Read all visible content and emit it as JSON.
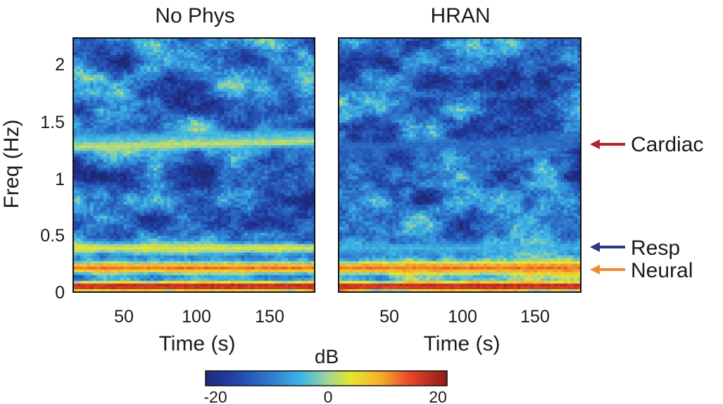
{
  "chart_data": {
    "type": "heatmap",
    "colormap": "jet",
    "ylabel": "Freq (Hz)",
    "ylim": [
      0,
      2.2
    ],
    "yticks": [
      "0",
      "0.5",
      "1",
      "1.5",
      "2"
    ],
    "ytick_values": [
      0,
      0.5,
      1,
      1.5,
      2
    ],
    "xlim": [
      15,
      182
    ],
    "colorbar": {
      "label": "dB",
      "range": [
        -22,
        22
      ],
      "tick_labels": [
        "-20",
        "0",
        "20"
      ],
      "tick_values": [
        -20,
        0,
        20
      ]
    },
    "panels": [
      {
        "title": "No Phys",
        "xlabel": "Time (s)",
        "xticks": [
          "50",
          "100",
          "150"
        ],
        "xtick_values": [
          50,
          100,
          150
        ],
        "bands": [
          {
            "freq": 0.05,
            "width": 0.05,
            "db": 20
          },
          {
            "freq": 0.21,
            "width": 0.07,
            "db": 13
          },
          {
            "freq": 0.38,
            "width": 0.06,
            "db": 4
          },
          {
            "freq": 1.35,
            "width": 0.06,
            "db": -5
          },
          {
            "freq": 1.28,
            "width": 0.06,
            "db": 2
          }
        ]
      },
      {
        "title": "HRAN",
        "xlabel": "Time (s)",
        "xticks": [
          "50",
          "100",
          "150"
        ],
        "xtick_values": [
          50,
          100,
          150
        ],
        "bands": [
          {
            "freq": 0.05,
            "width": 0.05,
            "db": 20
          },
          {
            "freq": 0.21,
            "width": 0.07,
            "db": 13
          },
          {
            "freq": 0.38,
            "width": 0.06,
            "db": -5
          },
          {
            "freq": 1.28,
            "width": 0.06,
            "db": -12
          }
        ]
      }
    ],
    "annotations": [
      {
        "label": "Cardiac",
        "freq": 1.28,
        "color": "#b0262d"
      },
      {
        "label": "Resp",
        "freq": 0.37,
        "color": "#2c3586"
      },
      {
        "label": "Neural",
        "freq": 0.2,
        "color": "#ef8a31"
      }
    ]
  }
}
